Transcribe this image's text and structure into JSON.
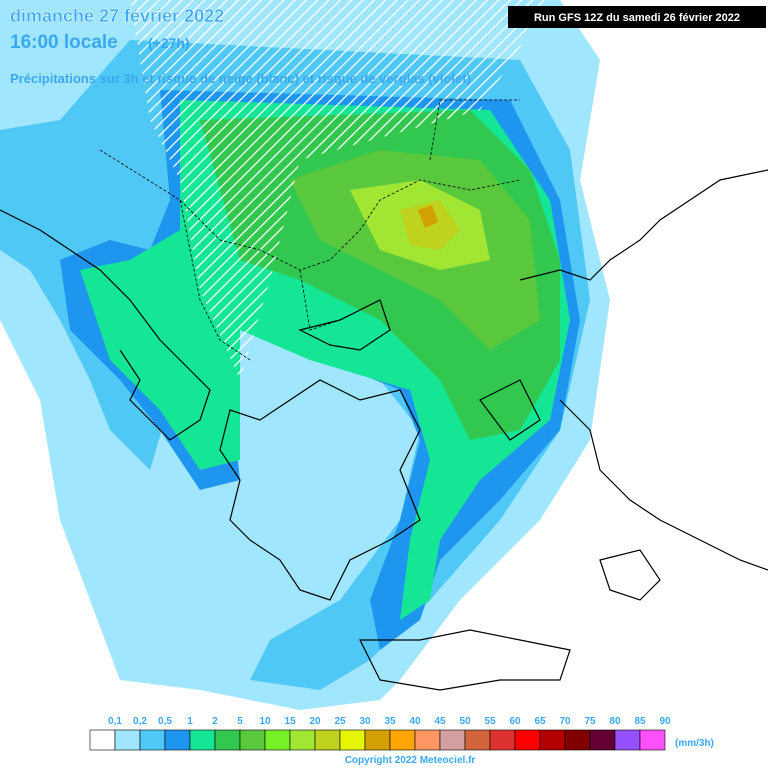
{
  "header": {
    "date_line": "dimanche 27 février 2022",
    "time": "16:00 locale",
    "lead": "(+27h)",
    "run": "Run GFS 12Z du samedi 26 février 2022",
    "subtitle": "Précipitations sur 3h et risque de neige (blanc) et risque de verglas (violet)"
  },
  "legend": {
    "labels": [
      "0,1",
      "0,2",
      "0,5",
      "1",
      "2",
      "5",
      "10",
      "15",
      "20",
      "25",
      "30",
      "35",
      "40",
      "45",
      "50",
      "55",
      "60",
      "65",
      "70",
      "75",
      "80",
      "85",
      "90"
    ],
    "colors": [
      "#ffffff",
      "#a0e6ff",
      "#50c8f5",
      "#1e96f0",
      "#14e696",
      "#32c850",
      "#5ac83c",
      "#78f028",
      "#a0e632",
      "#bed21e",
      "#e6f500",
      "#d2a000",
      "#ffa500",
      "#ff9664",
      "#d2a0a0",
      "#d2643c",
      "#dc3232",
      "#ff0000",
      "#b40000",
      "#820000",
      "#640032",
      "#9650ff",
      "#ff50ff"
    ],
    "unit": "(mm/3h)"
  },
  "footer": {
    "copyright": "Copyright 2022 Meteociel.fr"
  }
}
